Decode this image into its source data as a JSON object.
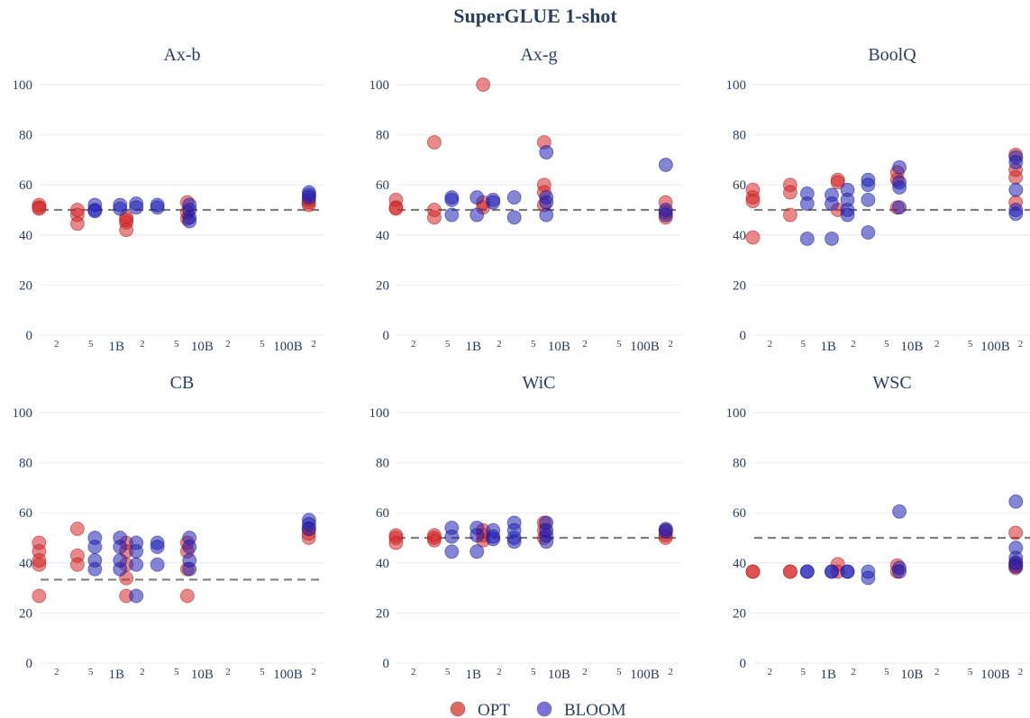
{
  "figure": {
    "title": "SuperGLUE 1-shot"
  },
  "colors": {
    "OPT": "#d62728",
    "BLOOM": "#2020b8",
    "grid": "#e6e9ef",
    "baseline": "#808080",
    "text": "#2a3f5f"
  },
  "legend": [
    {
      "label": "OPT",
      "color": "#e06a60"
    },
    {
      "label": "BLOOM",
      "color": "#7b72d6"
    }
  ],
  "chart_data": [
    {
      "type": "scatter",
      "title": "Ax-b",
      "xscale": "log",
      "ylim": [
        0,
        100
      ],
      "yticks": [
        0,
        20,
        40,
        60,
        80,
        100
      ],
      "xticks": [
        "2",
        "5",
        "1B",
        "2",
        "5",
        "10B",
        "2",
        "5",
        "100B",
        "2"
      ],
      "baseline": 50,
      "series": [
        {
          "name": "OPT",
          "points": [
            [
              125000000,
              52
            ],
            [
              125000000,
              51
            ],
            [
              125000000,
              50.5
            ],
            [
              350000000,
              48
            ],
            [
              350000000,
              44.5
            ],
            [
              350000000,
              50
            ],
            [
              1300000000,
              47
            ],
            [
              1300000000,
              45
            ],
            [
              1300000000,
              42
            ],
            [
              1300000000,
              46
            ],
            [
              6700000000,
              53
            ],
            [
              6700000000,
              46.5
            ],
            [
              6700000000,
              49
            ],
            [
              175000000000,
              52
            ],
            [
              175000000000,
              53
            ],
            [
              175000000000,
              54
            ]
          ]
        },
        {
          "name": "BLOOM",
          "points": [
            [
              560000000,
              50
            ],
            [
              560000000,
              52
            ],
            [
              560000000,
              49.5
            ],
            [
              1100000000,
              52
            ],
            [
              1100000000,
              50.5
            ],
            [
              1700000000,
              52.5
            ],
            [
              1700000000,
              51
            ],
            [
              3000000000,
              51
            ],
            [
              3000000000,
              52
            ],
            [
              7100000000,
              50
            ],
            [
              7100000000,
              47
            ],
            [
              7100000000,
              45.5
            ],
            [
              7100000000,
              52
            ],
            [
              176000000000,
              57
            ],
            [
              176000000000,
              56
            ],
            [
              176000000000,
              55
            ]
          ]
        }
      ]
    },
    {
      "type": "scatter",
      "title": "Ax-g",
      "xscale": "log",
      "ylim": [
        0,
        100
      ],
      "yticks": [
        0,
        20,
        40,
        60,
        80,
        100
      ],
      "xticks": [
        "2",
        "5",
        "1B",
        "2",
        "5",
        "10B",
        "2",
        "5",
        "100B",
        "2"
      ],
      "baseline": 50,
      "series": [
        {
          "name": "OPT",
          "points": [
            [
              125000000,
              54
            ],
            [
              125000000,
              51
            ],
            [
              125000000,
              50.5
            ],
            [
              350000000,
              77
            ],
            [
              350000000,
              47
            ],
            [
              350000000,
              50
            ],
            [
              1300000000,
              100
            ],
            [
              1300000000,
              51
            ],
            [
              1300000000,
              53
            ],
            [
              6700000000,
              77
            ],
            [
              6700000000,
              60
            ],
            [
              6700000000,
              52
            ],
            [
              6700000000,
              57
            ],
            [
              175000000000,
              53
            ],
            [
              175000000000,
              47
            ],
            [
              175000000000,
              49
            ]
          ]
        },
        {
          "name": "BLOOM",
          "points": [
            [
              560000000,
              48
            ],
            [
              560000000,
              55
            ],
            [
              560000000,
              54
            ],
            [
              1100000000,
              55
            ],
            [
              1100000000,
              48
            ],
            [
              1700000000,
              54
            ],
            [
              1700000000,
              53
            ],
            [
              3000000000,
              55
            ],
            [
              3000000000,
              47
            ],
            [
              7100000000,
              73
            ],
            [
              7100000000,
              55
            ],
            [
              7100000000,
              48
            ],
            [
              7100000000,
              53
            ],
            [
              176000000000,
              68
            ],
            [
              176000000000,
              48
            ],
            [
              176000000000,
              50
            ]
          ]
        }
      ]
    },
    {
      "type": "scatter",
      "title": "BoolQ",
      "xscale": "log",
      "ylim": [
        0,
        100
      ],
      "yticks": [
        0,
        20,
        40,
        60,
        80,
        100
      ],
      "xticks": [
        "2",
        "5",
        "1B",
        "2",
        "5",
        "10B",
        "2",
        "5",
        "100B",
        "2"
      ],
      "baseline": 50,
      "series": [
        {
          "name": "OPT",
          "points": [
            [
              125000000,
              58
            ],
            [
              125000000,
              39
            ],
            [
              125000000,
              55
            ],
            [
              125000000,
              53.5
            ],
            [
              350000000,
              60
            ],
            [
              350000000,
              48
            ],
            [
              350000000,
              57
            ],
            [
              1300000000,
              62
            ],
            [
              1300000000,
              50
            ],
            [
              1300000000,
              61
            ],
            [
              6700000000,
              65
            ],
            [
              6700000000,
              51
            ],
            [
              6700000000,
              62
            ],
            [
              175000000000,
              72
            ],
            [
              175000000000,
              66
            ],
            [
              175000000000,
              63
            ],
            [
              175000000000,
              53
            ]
          ]
        },
        {
          "name": "BLOOM",
          "points": [
            [
              560000000,
              56.5
            ],
            [
              560000000,
              38.5
            ],
            [
              560000000,
              52.5
            ],
            [
              1100000000,
              38.5
            ],
            [
              1100000000,
              56
            ],
            [
              1100000000,
              52.5
            ],
            [
              1700000000,
              58
            ],
            [
              1700000000,
              48
            ],
            [
              1700000000,
              54
            ],
            [
              1700000000,
              50
            ],
            [
              3000000000,
              62
            ],
            [
              3000000000,
              41
            ],
            [
              3000000000,
              54
            ],
            [
              3000000000,
              60
            ],
            [
              7100000000,
              67
            ],
            [
              7100000000,
              51
            ],
            [
              7100000000,
              59
            ],
            [
              7100000000,
              61
            ],
            [
              176000000000,
              71
            ],
            [
              176000000000,
              58
            ],
            [
              176000000000,
              48.5
            ],
            [
              176000000000,
              50
            ],
            [
              176000000000,
              69
            ]
          ]
        }
      ]
    },
    {
      "type": "scatter",
      "title": "CB",
      "xscale": "log",
      "ylim": [
        0,
        100
      ],
      "yticks": [
        0,
        20,
        40,
        60,
        80,
        100
      ],
      "xticks": [
        "2",
        "5",
        "1B",
        "2",
        "5",
        "10B",
        "2",
        "5",
        "100B",
        "2"
      ],
      "baseline": 33.3,
      "series": [
        {
          "name": "OPT",
          "points": [
            [
              125000000,
              48
            ],
            [
              125000000,
              26.8
            ],
            [
              125000000,
              39.3
            ],
            [
              125000000,
              44.6
            ],
            [
              125000000,
              41
            ],
            [
              350000000,
              53.6
            ],
            [
              350000000,
              42.9
            ],
            [
              350000000,
              39.3
            ],
            [
              1300000000,
              48
            ],
            [
              1300000000,
              26.8
            ],
            [
              1300000000,
              33.9
            ],
            [
              1300000000,
              39.3
            ],
            [
              1300000000,
              44.6
            ],
            [
              6700000000,
              48
            ],
            [
              6700000000,
              26.8
            ],
            [
              6700000000,
              44.6
            ],
            [
              6700000000,
              37.5
            ],
            [
              175000000000,
              50
            ],
            [
              175000000000,
              51.8
            ],
            [
              175000000000,
              53.6
            ]
          ]
        },
        {
          "name": "BLOOM",
          "points": [
            [
              560000000,
              50
            ],
            [
              560000000,
              37.5
            ],
            [
              560000000,
              41
            ],
            [
              560000000,
              46.4
            ],
            [
              1100000000,
              50
            ],
            [
              1100000000,
              37.5
            ],
            [
              1100000000,
              41
            ],
            [
              1100000000,
              46.4
            ],
            [
              1700000000,
              48
            ],
            [
              1700000000,
              26.8
            ],
            [
              1700000000,
              39.3
            ],
            [
              1700000000,
              44.6
            ],
            [
              3000000000,
              48
            ],
            [
              3000000000,
              39.3
            ],
            [
              3000000000,
              46.4
            ],
            [
              7100000000,
              50
            ],
            [
              7100000000,
              37.5
            ],
            [
              7100000000,
              41
            ],
            [
              7100000000,
              46.4
            ],
            [
              176000000000,
              57.1
            ],
            [
              176000000000,
              55.4
            ],
            [
              176000000000,
              53.6
            ]
          ]
        }
      ]
    },
    {
      "type": "scatter",
      "title": "WiC",
      "xscale": "log",
      "ylim": [
        0,
        100
      ],
      "yticks": [
        0,
        20,
        40,
        60,
        80,
        100
      ],
      "xticks": [
        "2",
        "5",
        "1B",
        "2",
        "5",
        "10B",
        "2",
        "5",
        "100B",
        "2"
      ],
      "baseline": 50,
      "series": [
        {
          "name": "OPT",
          "points": [
            [
              125000000,
              51
            ],
            [
              125000000,
              48
            ],
            [
              125000000,
              50
            ],
            [
              350000000,
              51
            ],
            [
              350000000,
              49
            ],
            [
              350000000,
              50
            ],
            [
              1300000000,
              53
            ],
            [
              1300000000,
              49
            ],
            [
              1300000000,
              51
            ],
            [
              6700000000,
              56
            ],
            [
              6700000000,
              50
            ],
            [
              6700000000,
              53
            ],
            [
              175000000000,
              51
            ],
            [
              175000000000,
              50
            ],
            [
              175000000000,
              53
            ]
          ]
        },
        {
          "name": "BLOOM",
          "points": [
            [
              560000000,
              54
            ],
            [
              560000000,
              44.5
            ],
            [
              560000000,
              50.5
            ],
            [
              1100000000,
              54
            ],
            [
              1100000000,
              44.5
            ],
            [
              1100000000,
              51
            ],
            [
              1700000000,
              53
            ],
            [
              1700000000,
              49.5
            ],
            [
              1700000000,
              50.5
            ],
            [
              3000000000,
              56
            ],
            [
              3000000000,
              48.5
            ],
            [
              3000000000,
              50
            ],
            [
              3000000000,
              53
            ],
            [
              7100000000,
              56
            ],
            [
              7100000000,
              48.5
            ],
            [
              7100000000,
              51
            ],
            [
              7100000000,
              53
            ],
            [
              176000000000,
              53.5
            ],
            [
              176000000000,
              52.5
            ]
          ]
        }
      ]
    },
    {
      "type": "scatter",
      "title": "WSC",
      "xscale": "log",
      "ylim": [
        0,
        100
      ],
      "yticks": [
        0,
        20,
        40,
        60,
        80,
        100
      ],
      "xticks": [
        "2",
        "5",
        "1B",
        "2",
        "5",
        "10B",
        "2",
        "5",
        "100B",
        "2"
      ],
      "baseline": 50,
      "series": [
        {
          "name": "OPT",
          "points": [
            [
              125000000,
              36.5
            ],
            [
              125000000,
              36.5
            ],
            [
              350000000,
              36.5
            ],
            [
              350000000,
              36.5
            ],
            [
              1300000000,
              39.5
            ],
            [
              1300000000,
              36.5
            ],
            [
              6700000000,
              39
            ],
            [
              6700000000,
              36.5
            ],
            [
              175000000000,
              52
            ],
            [
              175000000000,
              38
            ],
            [
              175000000000,
              39
            ],
            [
              175000000000,
              40
            ]
          ]
        },
        {
          "name": "BLOOM",
          "points": [
            [
              560000000,
              36.5
            ],
            [
              560000000,
              36.5
            ],
            [
              1100000000,
              36.5
            ],
            [
              1100000000,
              36.5
            ],
            [
              1700000000,
              36.5
            ],
            [
              1700000000,
              36.5
            ],
            [
              3000000000,
              34
            ],
            [
              3000000000,
              36.5
            ],
            [
              7100000000,
              60.5
            ],
            [
              7100000000,
              38
            ],
            [
              7100000000,
              36.5
            ],
            [
              176000000000,
              64.5
            ],
            [
              176000000000,
              46
            ],
            [
              176000000000,
              42
            ],
            [
              176000000000,
              40
            ],
            [
              176000000000,
              38.5
            ]
          ]
        }
      ]
    }
  ]
}
